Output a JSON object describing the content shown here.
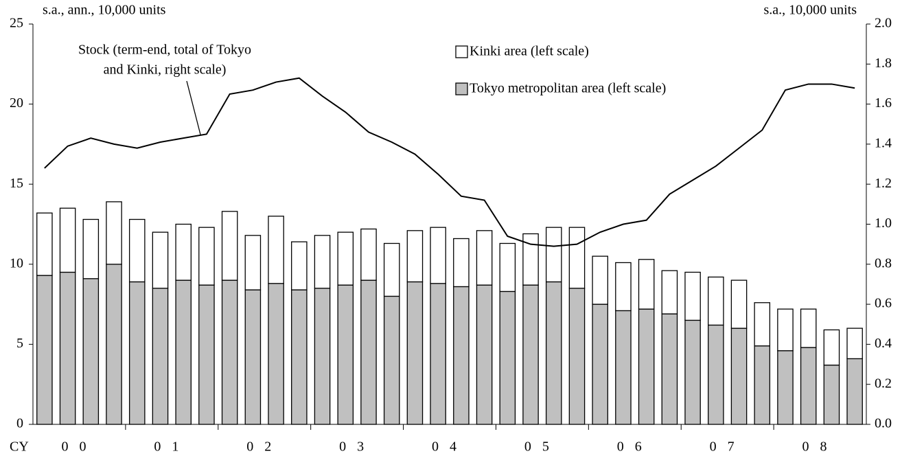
{
  "chart_data": {
    "type": "bar",
    "y_label": "s.a., ann., 10,000 units",
    "y2_label": "s.a., 10,000 units",
    "x_prefix": "CY",
    "categories": [
      "00",
      null,
      null,
      null,
      "01",
      null,
      null,
      null,
      "02",
      null,
      null,
      null,
      "03",
      null,
      null,
      null,
      "04",
      null,
      null,
      null,
      "05",
      null,
      null,
      null,
      "06",
      null,
      null,
      null,
      "07",
      null,
      null,
      null,
      "08",
      null,
      null,
      null
    ],
    "stacked": true,
    "series": [
      {
        "name": "Tokyo metropolitan area (left scale)",
        "color": "#c0c0c0",
        "type": "bar",
        "values": [
          9.3,
          9.5,
          9.1,
          10.0,
          8.9,
          8.5,
          9.0,
          8.7,
          9.0,
          8.4,
          8.8,
          8.4,
          8.5,
          8.7,
          9.0,
          8.0,
          8.9,
          8.8,
          8.6,
          8.7,
          8.3,
          8.7,
          8.9,
          8.5,
          7.5,
          7.1,
          7.2,
          6.9,
          6.5,
          6.2,
          6.0,
          4.9,
          4.6,
          4.8,
          3.7,
          4.1
        ]
      },
      {
        "name": "Kinki area (left scale)",
        "color": "#ffffff",
        "type": "bar",
        "values": [
          3.9,
          4.0,
          3.7,
          3.9,
          3.9,
          3.5,
          3.5,
          3.6,
          4.3,
          3.4,
          4.2,
          3.0,
          3.3,
          3.3,
          3.2,
          3.3,
          3.2,
          3.5,
          3.0,
          3.4,
          3.0,
          3.2,
          3.4,
          3.8,
          3.0,
          3.0,
          3.1,
          2.7,
          3.0,
          3.0,
          3.0,
          2.7,
          2.6,
          2.4,
          2.2,
          1.9
        ]
      },
      {
        "name": "Stock",
        "color": "#000000",
        "type": "line",
        "axis": "y2",
        "values": [
          1.28,
          1.39,
          1.43,
          1.4,
          1.38,
          1.41,
          1.43,
          1.45,
          1.65,
          1.67,
          1.71,
          1.73,
          1.64,
          1.56,
          1.46,
          1.41,
          1.35,
          1.25,
          1.14,
          1.12,
          0.94,
          0.9,
          0.89,
          0.9,
          0.96,
          1.0,
          1.02,
          1.15,
          1.22,
          1.29,
          1.38,
          1.47,
          1.67,
          1.7,
          1.7,
          1.68
        ]
      }
    ],
    "annotation": [
      "Stock (term-end, total of Tokyo",
      "and Kinki, right scale)"
    ],
    "ylim": [
      0,
      25
    ],
    "yticks": [
      0,
      5,
      10,
      15,
      20,
      25
    ],
    "y2lim": [
      0,
      2
    ],
    "y2ticks": [
      {
        "value": 0,
        "label": "0.0"
      },
      0.2,
      0.4,
      0.6,
      0.8,
      {
        "value": 1,
        "label": "1.0"
      },
      1.2,
      1.4,
      1.6,
      1.8,
      {
        "value": 2,
        "label": "2.0"
      }
    ],
    "legend": "top-right"
  }
}
